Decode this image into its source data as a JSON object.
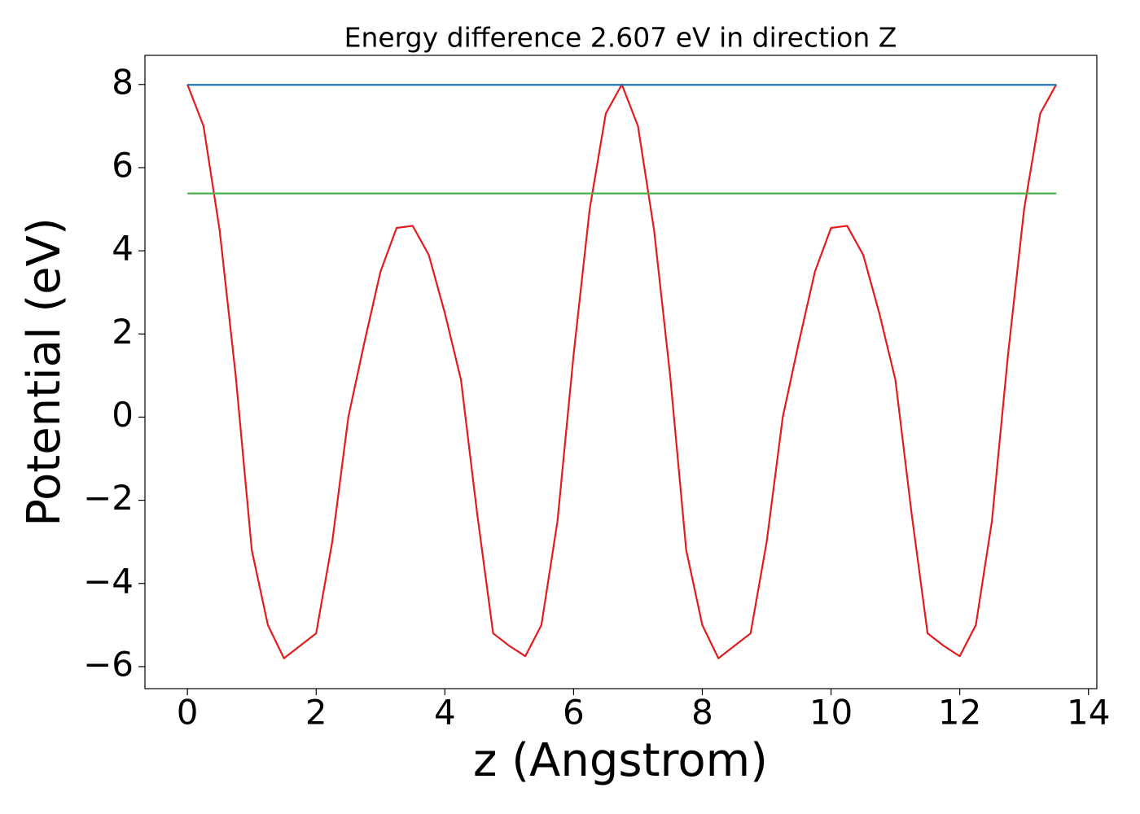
{
  "chart_data": {
    "type": "line",
    "title": "Energy difference 2.607 eV in direction Z",
    "xlabel": "z (Angstrom)",
    "ylabel": "Potential (eV)",
    "x": [
      0,
      0.25,
      0.5,
      0.75,
      1,
      1.25,
      1.5,
      1.75,
      2,
      2.25,
      2.5,
      2.75,
      3,
      3.25,
      3.5,
      3.75,
      4,
      4.25,
      4.5,
      4.75,
      5,
      5.25,
      5.5,
      5.75,
      6,
      6.25,
      6.5,
      6.75,
      7,
      7.25,
      7.5,
      7.75,
      8,
      8.25,
      8.5,
      8.75,
      9,
      9.25,
      9.5,
      9.75,
      10,
      10.25,
      10.5,
      10.75,
      11,
      11.25,
      11.5,
      11.75,
      12,
      12.25,
      12.5,
      12.75,
      13,
      13.25,
      13.5
    ],
    "series": [
      {
        "color": "#e41a1c",
        "values": [
          8.0,
          7.0,
          4.5,
          1.0,
          -3.2,
          -5.0,
          -5.8,
          -5.5,
          -5.2,
          -3.0,
          0.0,
          1.8,
          3.5,
          4.55,
          4.6,
          3.9,
          2.5,
          0.9,
          -2.3,
          -5.2,
          -5.5,
          -5.75,
          -5.0,
          -2.5,
          1.5,
          5.0,
          7.3,
          8.0,
          7.0,
          4.5,
          1.0,
          -3.2,
          -5.0,
          -5.8,
          -5.5,
          -5.2,
          -3.0,
          0.0,
          1.8,
          3.5,
          4.55,
          4.6,
          3.9,
          2.5,
          0.9,
          -2.3,
          -5.2,
          -5.5,
          -5.75,
          -5.0,
          -2.5,
          1.5,
          5.0,
          7.3,
          8.0
        ]
      },
      {
        "color": "#1f77b4",
        "x": [
          0,
          13.5
        ],
        "values": [
          7.99,
          7.99
        ]
      },
      {
        "color": "#4daf4a",
        "x": [
          0,
          13.5
        ],
        "values": [
          5.38,
          5.38
        ]
      }
    ],
    "xlim": [
      -0.66,
      14.13
    ],
    "ylim": [
      -6.53,
      8.7
    ],
    "xticks": [
      0,
      2,
      4,
      6,
      8,
      10,
      12,
      14
    ],
    "yticks": [
      {
        "value": -6,
        "label": "−6"
      },
      {
        "value": -4,
        "label": "−4"
      },
      {
        "value": -2,
        "label": "−2"
      },
      0,
      2,
      4,
      6,
      8
    ]
  }
}
